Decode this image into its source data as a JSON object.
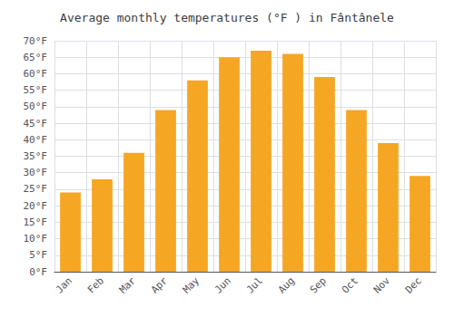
{
  "chart_data": {
    "type": "bar",
    "title": "Average monthly temperatures (°F ) in Fântânele",
    "categories": [
      "Jan",
      "Feb",
      "Mar",
      "Apr",
      "May",
      "Jun",
      "Jul",
      "Aug",
      "Sep",
      "Oct",
      "Nov",
      "Dec"
    ],
    "values": [
      24,
      28,
      36,
      49,
      58,
      65,
      67,
      66,
      59,
      49,
      39,
      29
    ],
    "color": "#F5A623",
    "ylim": [
      0,
      70
    ],
    "yticks": [
      {
        "value": 0,
        "label": "0°F"
      },
      {
        "value": 5,
        "label": "5°F"
      },
      {
        "value": 10,
        "label": "10°F"
      },
      {
        "value": 15,
        "label": "15°F"
      },
      {
        "value": 20,
        "label": "20°F"
      },
      {
        "value": 25,
        "label": "25°F"
      },
      {
        "value": 30,
        "label": "30°F"
      },
      {
        "value": 35,
        "label": "35°F"
      },
      {
        "value": 40,
        "label": "40°F"
      },
      {
        "value": 45,
        "label": "45°F"
      },
      {
        "value": 50,
        "label": "50°F"
      },
      {
        "value": 55,
        "label": "55°F"
      },
      {
        "value": 60,
        "label": "60°F"
      },
      {
        "value": 65,
        "label": "65°F"
      },
      {
        "value": 70,
        "label": "70°F"
      }
    ],
    "grid": true
  }
}
